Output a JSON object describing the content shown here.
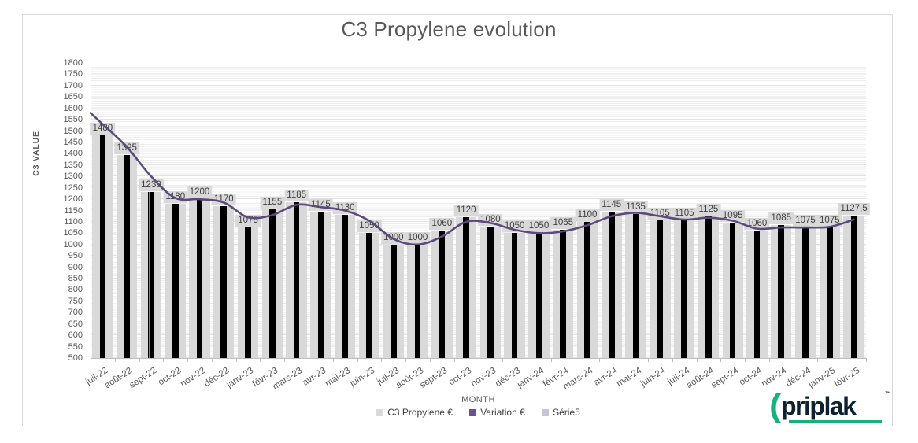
{
  "title": "C3 Propylene evolution",
  "axes": {
    "y_title": "C3 VALUE",
    "x_title": "MONTH"
  },
  "legend": [
    {
      "label": "C3 Propylene €",
      "color": "#d9d9d9"
    },
    {
      "label": "Variation €",
      "color": "#66558c"
    },
    {
      "label": "Série5",
      "color": "#c9c2d8"
    }
  ],
  "chart_data": {
    "type": "bar",
    "title": "C3 Propylene evolution",
    "xlabel": "MONTH",
    "ylabel": "C3 VALUE",
    "ylim": [
      500,
      1800
    ],
    "ytick_step": 50,
    "grid": "minor horizontal stripes",
    "legend_position": "bottom",
    "categories": [
      "juil-22",
      "août-22",
      "sept-22",
      "oct-22",
      "nov-22",
      "déc-22",
      "janv-23",
      "févr-23",
      "mars-23",
      "avr-23",
      "mai-23",
      "juin-23",
      "juil-23",
      "août-23",
      "sept-23",
      "oct-23",
      "nov-23",
      "déc-23",
      "janv-24",
      "févr-24",
      "mars-24",
      "avr-24",
      "mai-24",
      "juin-24",
      "juil-24",
      "août-24",
      "sept-24",
      "oct-24",
      "nov-24",
      "déc-24",
      "janv-25",
      "févr-25"
    ],
    "series": [
      {
        "name": "C3 Propylene €",
        "type": "bar",
        "wide_bar_color": "#d9d9d9",
        "narrow_bar_color": "#000000",
        "values": [
          1480,
          1395,
          1230,
          1180,
          1200,
          1170,
          1075,
          1155,
          1185,
          1145,
          1130,
          1050,
          1000,
          1000,
          1060,
          1120,
          1080,
          1050,
          1050,
          1065,
          1100,
          1145,
          1135,
          1105,
          1105,
          1125,
          1095,
          1060,
          1085,
          1075,
          1075,
          1127.5
        ],
        "data_labels": [
          "1480",
          "1395",
          "1230",
          "1180",
          "1200",
          "1170",
          "1075",
          "1155",
          "1185",
          "1145",
          "1130",
          "1050",
          "1000",
          "1000",
          "1060",
          "1120",
          "1080",
          "1050",
          "1050",
          "1065",
          "1100",
          "1145",
          "1135",
          "1105",
          "1105",
          "1125",
          "1095",
          "1060",
          "1085",
          "1075",
          "1075",
          "1127,5"
        ]
      },
      {
        "name": "Variation €",
        "type": "line",
        "color": "#5b4b7d",
        "values_are_estimated": true,
        "values": [
          1530,
          1430,
          1300,
          1205,
          1200,
          1185,
          1120,
          1130,
          1175,
          1165,
          1150,
          1105,
          1025,
          1000,
          1035,
          1100,
          1095,
          1065,
          1050,
          1058,
          1085,
          1125,
          1140,
          1125,
          1110,
          1118,
          1105,
          1070,
          1075,
          1075,
          1078,
          1110
        ]
      },
      {
        "name": "Série5",
        "type": "bar",
        "color": "#8673ad",
        "values": [
          null,
          null,
          1230,
          null,
          null,
          null,
          null,
          null,
          null,
          null,
          null,
          null,
          null,
          null,
          null,
          null,
          null,
          null,
          null,
          null,
          null,
          null,
          null,
          null,
          null,
          null,
          null,
          null,
          null,
          null,
          null,
          null
        ]
      }
    ]
  },
  "logo": {
    "text": "priplak",
    "trademark": "™",
    "wordmark_color": "#0d2130",
    "accent_color": "#14b37a"
  },
  "colors": {
    "title_text": "#595959",
    "axis_text": "#595959",
    "data_label_text": "#3f3f3f",
    "data_label_bg": "#d9d9d9"
  }
}
